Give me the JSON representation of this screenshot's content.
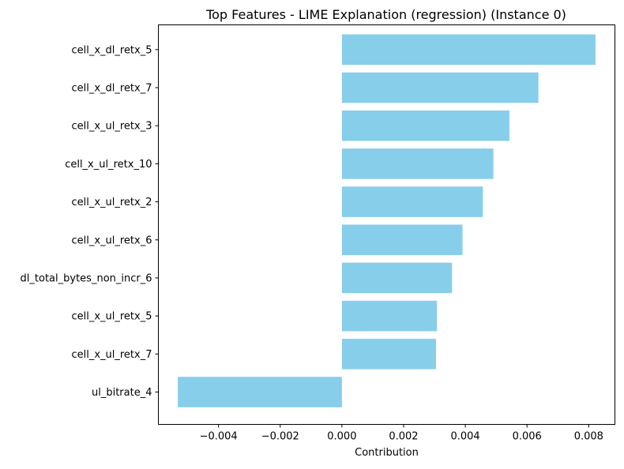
{
  "chart_data": {
    "type": "bar",
    "orientation": "horizontal",
    "title": "Top Features - LIME Explanation (regression) (Instance 0)",
    "xlabel": "Contribution",
    "ylabel": "",
    "categories": [
      "cell_x_dl_retx_5",
      "cell_x_dl_retx_7",
      "cell_x_ul_retx_3",
      "cell_x_ul_retx_10",
      "cell_x_ul_retx_2",
      "cell_x_ul_retx_6",
      "dl_total_bytes_non_incr_6",
      "cell_x_ul_retx_5",
      "cell_x_ul_retx_7",
      "ul_bitrate_4"
    ],
    "values": [
      0.00822,
      0.00637,
      0.00543,
      0.00491,
      0.00457,
      0.00391,
      0.00357,
      0.00308,
      0.00305,
      -0.00532
    ],
    "xlim": [
      -0.00595,
      0.00885
    ],
    "xticks": [
      -0.004,
      -0.002,
      0.0,
      0.002,
      0.004,
      0.006,
      0.008
    ],
    "xtick_labels": [
      "−0.004",
      "−0.002",
      "0.000",
      "0.002",
      "0.004",
      "0.006",
      "0.008"
    ],
    "bar_color": "#87ceeb",
    "grid": false,
    "legend": "none"
  }
}
